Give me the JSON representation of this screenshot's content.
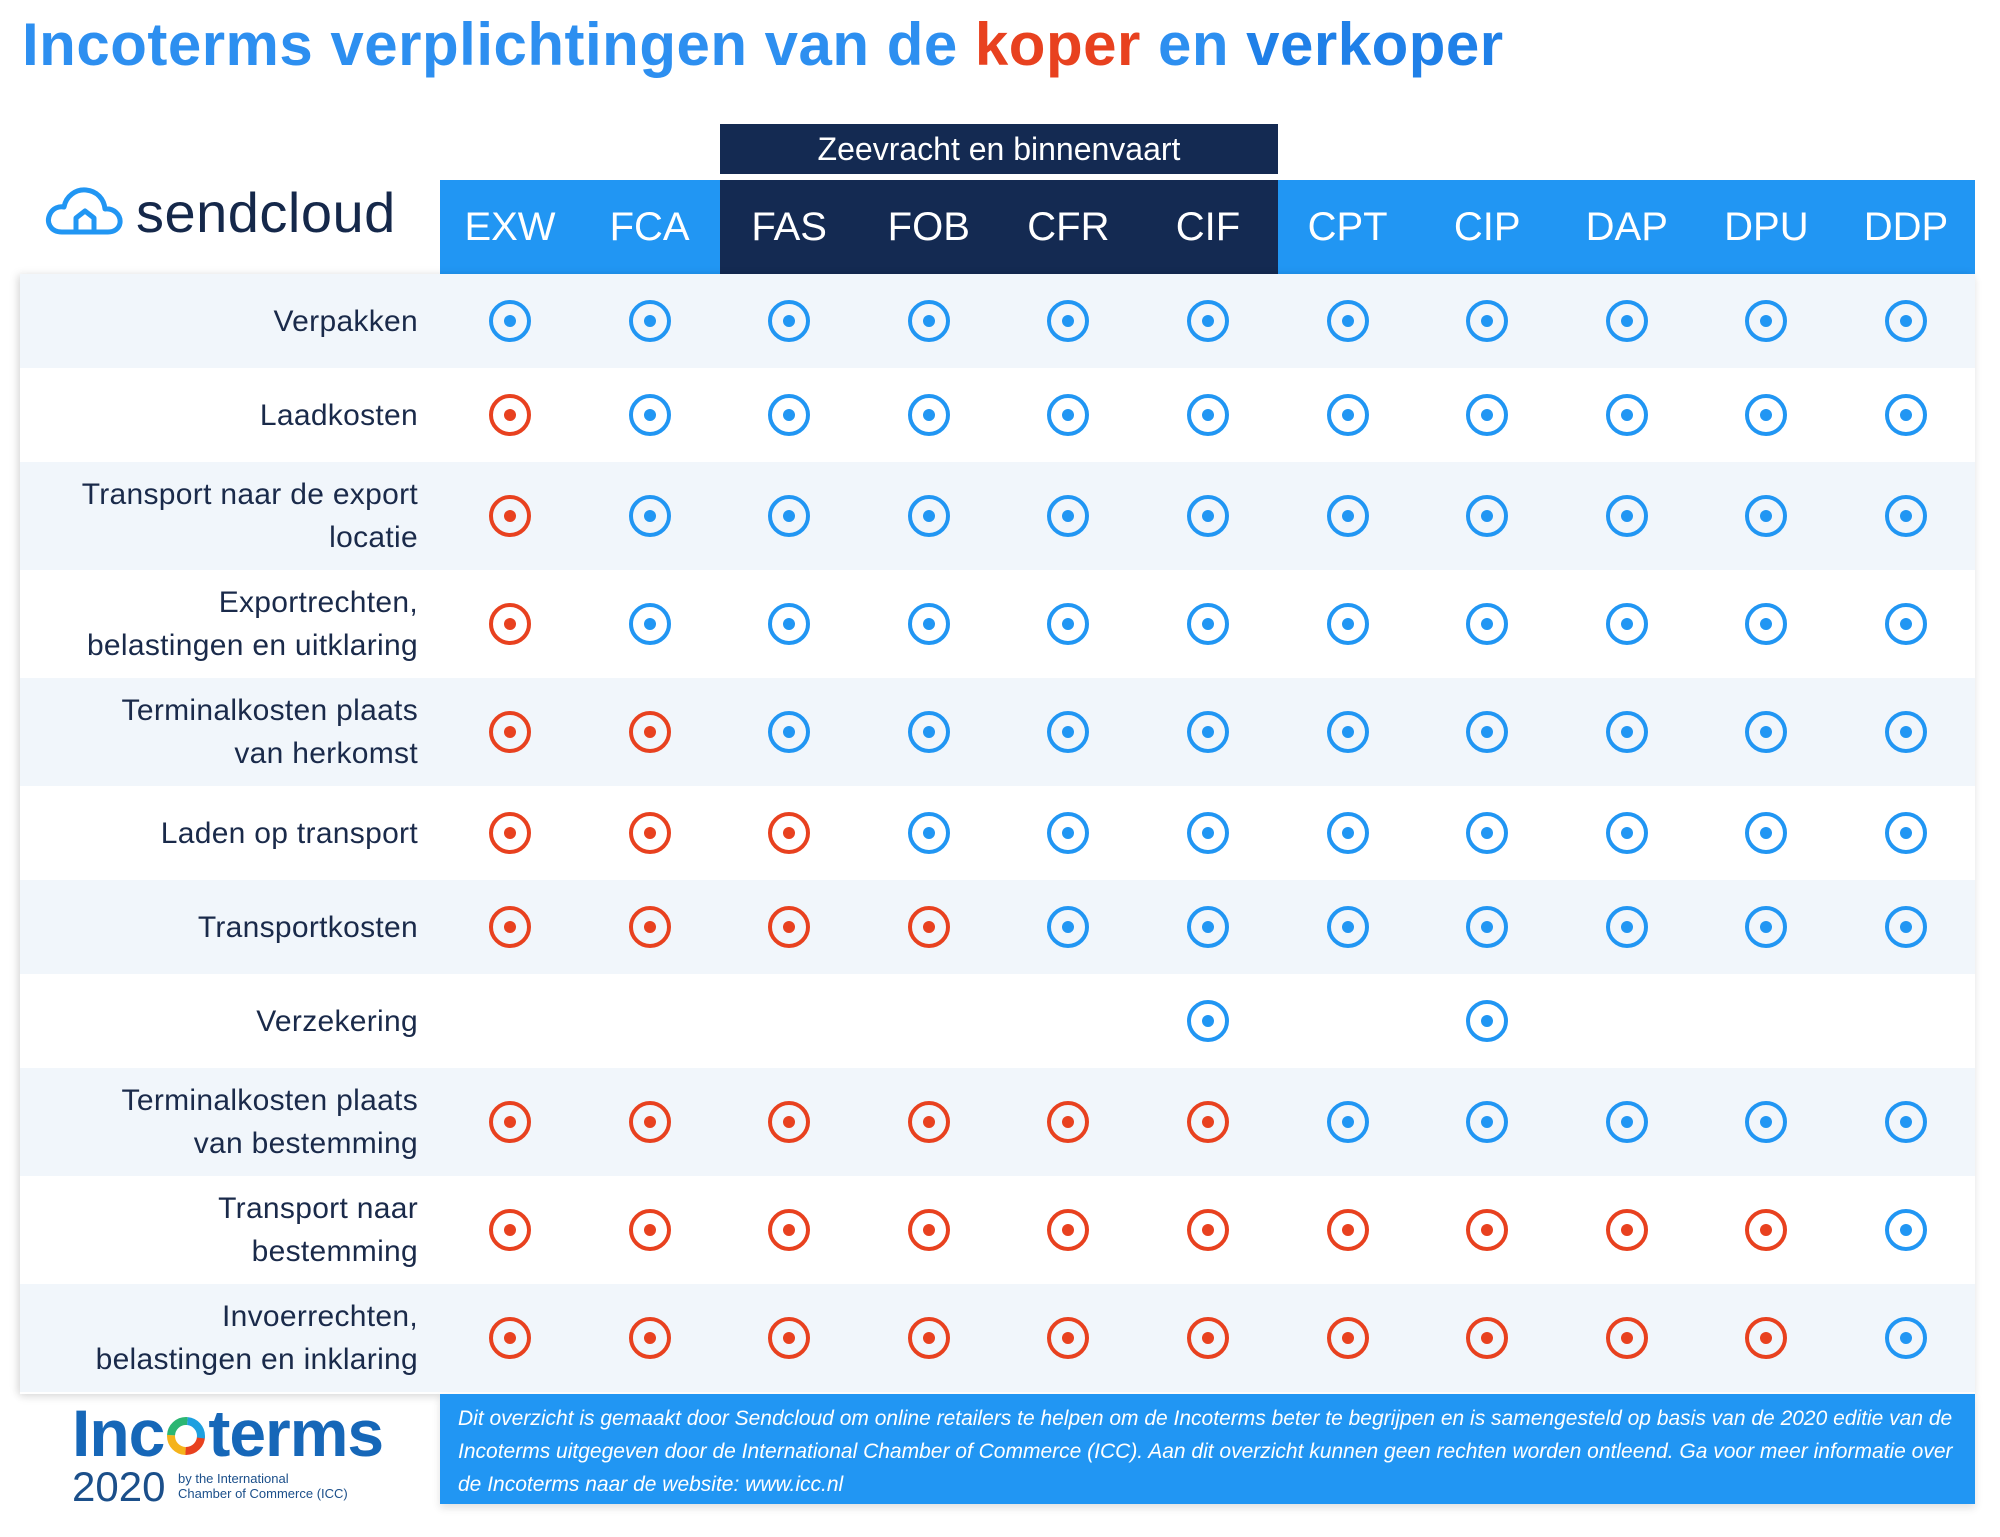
{
  "title": {
    "part1": "Incoterms verplichtingen van de ",
    "koper": "koper",
    "part2": " en ",
    "verkoper": "verkoper"
  },
  "brand": {
    "name": "sendcloud",
    "icon": "cloud-icon"
  },
  "sea_group_label": "Zeevracht en binnenvaart",
  "terms": [
    "EXW",
    "FCA",
    "FAS",
    "FOB",
    "CFR",
    "CIF",
    "CPT",
    "CIP",
    "DAP",
    "DPU",
    "DDP"
  ],
  "colors": {
    "blue": "#2196f3",
    "red": "#e8411f",
    "navy": "#142a52"
  },
  "rows": [
    {
      "label": "Verpakken",
      "cells": [
        "blue",
        "blue",
        "blue",
        "blue",
        "blue",
        "blue",
        "blue",
        "blue",
        "blue",
        "blue",
        "blue"
      ]
    },
    {
      "label": "Laadkosten",
      "cells": [
        "red",
        "blue",
        "blue",
        "blue",
        "blue",
        "blue",
        "blue",
        "blue",
        "blue",
        "blue",
        "blue"
      ]
    },
    {
      "label": "Transport naar de export locatie",
      "lines": [
        "Transport naar de export",
        "locatie"
      ],
      "cells": [
        "red",
        "blue",
        "blue",
        "blue",
        "blue",
        "blue",
        "blue",
        "blue",
        "blue",
        "blue",
        "blue"
      ]
    },
    {
      "label": "Exportrechten, belastingen en uitklaring",
      "lines": [
        "Exportrechten,",
        "belastingen en uitklaring"
      ],
      "cells": [
        "red",
        "blue",
        "blue",
        "blue",
        "blue",
        "blue",
        "blue",
        "blue",
        "blue",
        "blue",
        "blue"
      ]
    },
    {
      "label": "Terminalkosten plaats van herkomst",
      "lines": [
        "Terminalkosten plaats",
        "van herkomst"
      ],
      "cells": [
        "red",
        "red",
        "blue",
        "blue",
        "blue",
        "blue",
        "blue",
        "blue",
        "blue",
        "blue",
        "blue"
      ]
    },
    {
      "label": "Laden op transport",
      "cells": [
        "red",
        "red",
        "red",
        "blue",
        "blue",
        "blue",
        "blue",
        "blue",
        "blue",
        "blue",
        "blue"
      ]
    },
    {
      "label": "Transportkosten",
      "cells": [
        "red",
        "red",
        "red",
        "red",
        "blue",
        "blue",
        "blue",
        "blue",
        "blue",
        "blue",
        "blue"
      ]
    },
    {
      "label": "Verzekering",
      "cells": [
        "",
        "",
        "",
        "",
        "",
        "blue",
        "",
        "blue",
        "",
        "",
        ""
      ]
    },
    {
      "label": "Terminalkosten plaats van bestemming",
      "lines": [
        "Terminalkosten plaats",
        "van bestemming"
      ],
      "cells": [
        "red",
        "red",
        "red",
        "red",
        "red",
        "red",
        "blue",
        "blue",
        "blue",
        "blue",
        "blue"
      ]
    },
    {
      "label": "Transport naar bestemming",
      "lines": [
        "Transport naar",
        "bestemming"
      ],
      "cells": [
        "red",
        "red",
        "red",
        "red",
        "red",
        "red",
        "red",
        "red",
        "red",
        "red",
        "blue"
      ]
    },
    {
      "label": "Invoerrechten, belastingen en inklaring",
      "lines": [
        "Invoerrechten,",
        "belastingen en inklaring"
      ],
      "cells": [
        "red",
        "red",
        "red",
        "red",
        "red",
        "red",
        "red",
        "red",
        "red",
        "red",
        "blue"
      ]
    }
  ],
  "incoterms_logo": {
    "word_prefix": "Inc",
    "word_suffix": "terms",
    "registered": "®",
    "year": "2020",
    "sub_line1": "by the International",
    "sub_line2": "Chamber of Commerce (ICC)"
  },
  "disclaimer": "Dit overzicht is gemaakt door Sendcloud om online retailers te helpen om de Incoterms beter te begrijpen en is samengesteld op basis van de 2020 editie van de Incoterms uitgegeven door de International Chamber of Commerce (ICC). Aan dit overzicht kunnen geen rechten worden ontleend. Ga voor meer informatie over de Incoterms naar de website: www.icc.nl"
}
